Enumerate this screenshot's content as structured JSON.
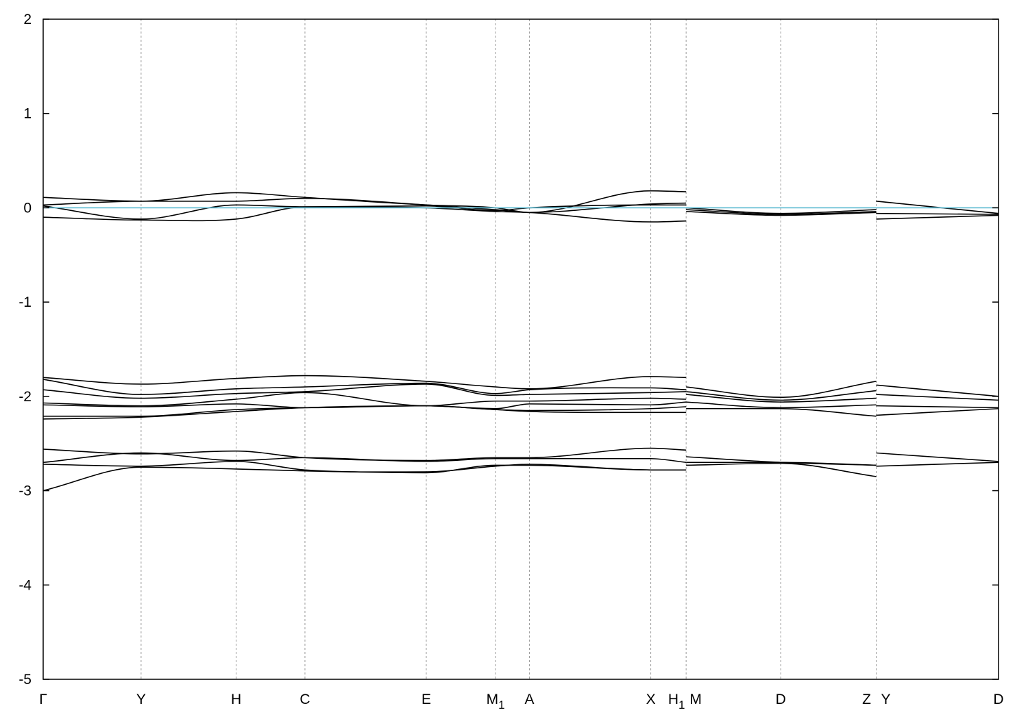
{
  "chart_data": {
    "type": "line",
    "title": "",
    "xlabel": "",
    "ylabel": "",
    "ylim": [
      -5,
      2
    ],
    "y_ticks": [
      -5,
      -4,
      -3,
      -2,
      -1,
      0,
      1,
      2
    ],
    "y_tick_labels": [
      "-5",
      "-4",
      "-3",
      "-2",
      "-1",
      "0",
      "1",
      "2"
    ],
    "x_range": [
      0,
      100
    ],
    "kpoints": [
      {
        "label": "Γ",
        "sub": "",
        "x": 0
      },
      {
        "label": "Y",
        "sub": "",
        "x": 10.25
      },
      {
        "label": "H",
        "sub": "",
        "x": 20.2
      },
      {
        "label": "C",
        "sub": "",
        "x": 27.4
      },
      {
        "label": "E",
        "sub": "",
        "x": 40.1
      },
      {
        "label": "M",
        "sub": "1",
        "x": 47.35
      },
      {
        "label": "A",
        "sub": "",
        "x": 50.9
      },
      {
        "label": "X",
        "sub": "",
        "x": 63.6
      },
      {
        "label": "H",
        "sub": "1",
        "x": 67.3
      },
      {
        "label": "M",
        "sub": "",
        "x": 67.3
      },
      {
        "label": "D",
        "sub": "",
        "x": 77.2
      },
      {
        "label": "Z",
        "sub": "",
        "x": 87.2
      },
      {
        "label": "Y",
        "sub": "",
        "x": 87.2
      },
      {
        "label": "D",
        "sub": "",
        "x": 100
      }
    ],
    "vertical_lines_at": [
      10.25,
      20.2,
      27.4,
      40.1,
      47.35,
      50.9,
      63.6,
      67.3,
      77.2,
      87.2
    ],
    "fermi_level": 0,
    "fermi_color": "#5fbcd3",
    "band_color": "#000000",
    "grid": false,
    "segments": [
      {
        "x": [
          0,
          10.25,
          20.2,
          27.4,
          40.1,
          47.35,
          50.9,
          63.6,
          67.3
        ],
        "bands": [
          [
            0.11,
            0.07,
            0.16,
            0.11,
            0.03,
            0.0,
            -0.05,
            0.18,
            0.17
          ],
          [
            0.03,
            0.07,
            0.07,
            0.1,
            0.03,
            -0.02,
            -0.05,
            0.04,
            0.05
          ],
          [
            0.02,
            -0.12,
            0.03,
            0.01,
            0.02,
            -0.03,
            0.0,
            0.03,
            0.03
          ],
          [
            -0.1,
            -0.13,
            -0.12,
            0.01,
            0.0,
            -0.04,
            -0.05,
            -0.15,
            -0.14
          ],
          [
            -1.8,
            -1.87,
            -1.81,
            -1.78,
            -1.84,
            -1.9,
            -1.92,
            -1.79,
            -1.8
          ],
          [
            -1.82,
            -1.98,
            -1.92,
            -1.9,
            -1.86,
            -1.97,
            -1.93,
            -1.91,
            -1.93
          ],
          [
            -1.93,
            -2.02,
            -1.97,
            -1.95,
            -1.87,
            -1.99,
            -1.98,
            -1.96,
            -1.95
          ],
          [
            -2.07,
            -2.1,
            -2.03,
            -1.96,
            -2.1,
            -2.05,
            -2.05,
            -2.02,
            -2.03
          ],
          [
            -2.09,
            -2.11,
            -2.08,
            -2.12,
            -2.1,
            -2.13,
            -2.08,
            -2.09,
            -2.06
          ],
          [
            -2.21,
            -2.21,
            -2.14,
            -2.12,
            -2.1,
            -2.14,
            -2.15,
            -2.13,
            -2.11
          ],
          [
            -2.24,
            -2.22,
            -2.16,
            -2.12,
            -2.1,
            -2.14,
            -2.16,
            -2.17,
            -2.17
          ],
          [
            -2.56,
            -2.61,
            -2.58,
            -2.65,
            -2.68,
            -2.65,
            -2.65,
            -2.55,
            -2.57
          ],
          [
            -2.7,
            -2.6,
            -2.68,
            -2.65,
            -2.69,
            -2.66,
            -2.66,
            -2.66,
            -2.7
          ],
          [
            -2.72,
            -2.74,
            -2.69,
            -2.78,
            -2.8,
            -2.74,
            -2.72,
            -2.78,
            -2.78
          ],
          [
            -3.0,
            -2.75,
            -2.77,
            -2.79,
            -2.81,
            -2.73,
            -2.73,
            -2.78,
            -2.78
          ]
        ]
      },
      {
        "x": [
          67.3,
          77.2,
          87.2
        ],
        "bands": [
          [
            0.0,
            -0.06,
            -0.02
          ],
          [
            -0.02,
            -0.07,
            -0.04
          ],
          [
            -0.04,
            -0.08,
            -0.05
          ],
          [
            -1.9,
            -2.01,
            -1.84
          ],
          [
            -1.95,
            -2.04,
            -1.94
          ],
          [
            -1.98,
            -2.06,
            -2.02
          ],
          [
            -2.06,
            -2.12,
            -2.09
          ],
          [
            -2.13,
            -2.13,
            -2.21
          ],
          [
            -2.64,
            -2.7,
            -2.73
          ],
          [
            -2.7,
            -2.7,
            -2.73
          ],
          [
            -2.73,
            -2.71,
            -2.85
          ]
        ]
      },
      {
        "x": [
          87.2,
          100
        ],
        "bands": [
          [
            0.07,
            -0.06
          ],
          [
            -0.06,
            -0.07
          ],
          [
            -0.12,
            -0.08
          ],
          [
            -1.88,
            -2.0
          ],
          [
            -1.98,
            -2.04
          ],
          [
            -2.1,
            -2.12
          ],
          [
            -2.2,
            -2.13
          ],
          [
            -2.6,
            -2.69
          ],
          [
            -2.74,
            -2.7
          ]
        ]
      }
    ]
  }
}
